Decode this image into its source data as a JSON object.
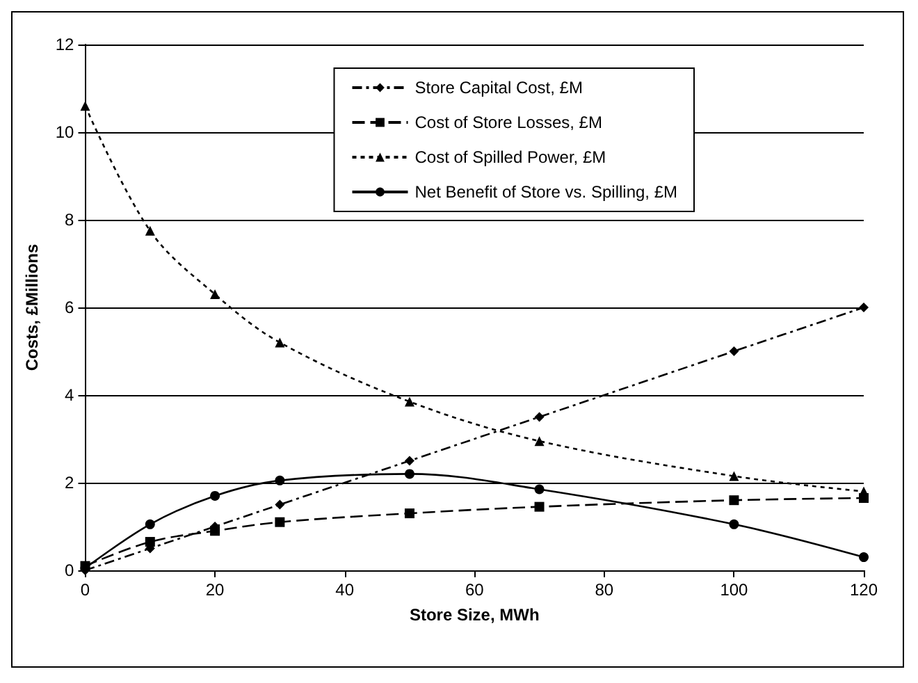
{
  "chart_data": {
    "type": "line",
    "xlabel": "Store Size, MWh",
    "ylabel": "Costs, £Millions",
    "x": [
      0,
      10,
      20,
      30,
      50,
      70,
      100,
      120
    ],
    "series": [
      {
        "name": "Store Capital Cost, £M",
        "color": "#000000",
        "marker": "diamond",
        "line_style": "dashed",
        "values": [
          0,
          0.5,
          1.0,
          1.5,
          2.5,
          3.5,
          5.0,
          6.0
        ]
      },
      {
        "name": "Cost of Store Losses, £M",
        "color": "#000000",
        "marker": "square",
        "line_style": "dashed",
        "values": [
          0.1,
          0.65,
          0.9,
          1.1,
          1.3,
          1.45,
          1.6,
          1.65
        ]
      },
      {
        "name": "Cost of Spilled Power, £M",
        "color": "#000000",
        "marker": "triangle",
        "line_style": "dotted",
        "values": [
          10.6,
          7.75,
          6.3,
          5.2,
          3.85,
          2.95,
          2.15,
          1.8
        ]
      },
      {
        "name": "Net Benefit of Store vs. Spilling, £M",
        "color": "#000000",
        "marker": "circle",
        "line_style": "solid",
        "values": [
          0.05,
          1.05,
          1.7,
          2.05,
          2.2,
          1.85,
          1.05,
          0.3
        ]
      }
    ],
    "xlim": [
      0,
      120
    ],
    "xticks": [
      0,
      20,
      40,
      60,
      80,
      100,
      120
    ],
    "ylim": [
      0,
      12
    ],
    "yticks": [
      0,
      2,
      4,
      6,
      8,
      10,
      12
    ],
    "grid": "y",
    "legend": "top right"
  }
}
